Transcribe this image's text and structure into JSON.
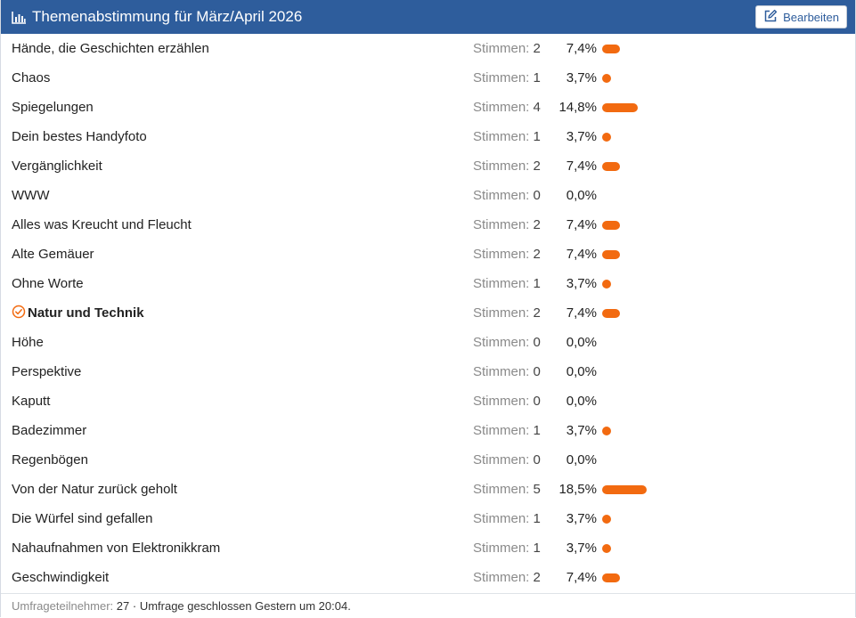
{
  "header": {
    "title": "Themenabstimmung für März/April 2026",
    "chart_icon": "bar-chart-icon",
    "edit_label": "Bearbeiten",
    "edit_icon": "edit-icon"
  },
  "votes_label": "Stimmen:",
  "accent_color": "#f26a10",
  "header_color": "#2e5d9c",
  "options": [
    {
      "label": "Hände, die Geschichten erzählen",
      "votes": "2",
      "percent": "7,4%",
      "share": 0.074
    },
    {
      "label": "Chaos",
      "votes": "1",
      "percent": "3,7%",
      "share": 0.037
    },
    {
      "label": "Spiegelungen",
      "votes": "4",
      "percent": "14,8%",
      "share": 0.148
    },
    {
      "label": "Dein bestes Handyfoto",
      "votes": "1",
      "percent": "3,7%",
      "share": 0.037
    },
    {
      "label": "Vergänglichkeit",
      "votes": "2",
      "percent": "7,4%",
      "share": 0.074
    },
    {
      "label": "WWW",
      "votes": "0",
      "percent": "0,0%",
      "share": 0
    },
    {
      "label": "Alles was Kreucht und Fleucht",
      "votes": "2",
      "percent": "7,4%",
      "share": 0.074
    },
    {
      "label": "Alte Gemäuer",
      "votes": "2",
      "percent": "7,4%",
      "share": 0.074
    },
    {
      "label": "Ohne Worte",
      "votes": "1",
      "percent": "3,7%",
      "share": 0.037
    },
    {
      "label": "Natur und Technik",
      "votes": "2",
      "percent": "7,4%",
      "share": 0.074,
      "selected": true
    },
    {
      "label": "Höhe",
      "votes": "0",
      "percent": "0,0%",
      "share": 0
    },
    {
      "label": "Perspektive",
      "votes": "0",
      "percent": "0,0%",
      "share": 0
    },
    {
      "label": "Kaputt",
      "votes": "0",
      "percent": "0,0%",
      "share": 0
    },
    {
      "label": "Badezimmer",
      "votes": "1",
      "percent": "3,7%",
      "share": 0.037
    },
    {
      "label": "Regenbögen",
      "votes": "0",
      "percent": "0,0%",
      "share": 0
    },
    {
      "label": "Von der Natur zurück geholt",
      "votes": "5",
      "percent": "18,5%",
      "share": 0.185
    },
    {
      "label": "Die Würfel sind gefallen",
      "votes": "1",
      "percent": "3,7%",
      "share": 0.037
    },
    {
      "label": "Nahaufnahmen von Elektronikkram",
      "votes": "1",
      "percent": "3,7%",
      "share": 0.037
    },
    {
      "label": "Geschwindigkeit",
      "votes": "2",
      "percent": "7,4%",
      "share": 0.074
    }
  ],
  "footer": {
    "participants_label": "Umfrageteilnehmer:",
    "participants_value": "27",
    "status": "· Umfrage geschlossen Gestern um 20:04."
  }
}
